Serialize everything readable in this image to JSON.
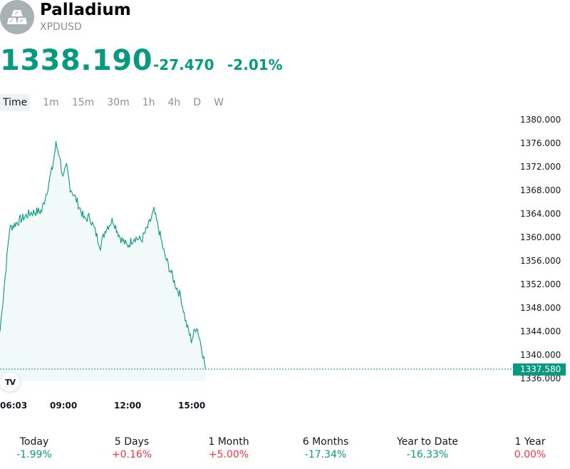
{
  "header": {
    "title": "Palladium",
    "ticker": "XPDUSD",
    "logo_icon": "metal-bars-icon"
  },
  "quote": {
    "price": "1338.190",
    "change": "-27.470",
    "change_pct": "-2.01%",
    "color": "#089981"
  },
  "tabs": [
    "Time",
    "1m",
    "15m",
    "30m",
    "1h",
    "4h",
    "D",
    "W"
  ],
  "active_tab": "Time",
  "chart": {
    "badge_text": "TV",
    "badge_icon": "tradingview-logo-icon",
    "line_color": "#089981",
    "last_value_label": "1337.580"
  },
  "chart_data": {
    "type": "area",
    "y_ticks": [
      "1380.000",
      "1376.000",
      "1372.000",
      "1368.000",
      "1364.000",
      "1360.000",
      "1356.000",
      "1352.000",
      "1348.000",
      "1344.000",
      "1340.000",
      "1336.000"
    ],
    "x_ticks": [
      "06:03",
      "09:00",
      "12:00",
      "15:00"
    ],
    "ylim": [
      1335.5,
      1380.0
    ],
    "last_value": 1337.58,
    "series": [
      {
        "x": [
          "06:03",
          "06:30",
          "07:00",
          "07:30",
          "08:00",
          "08:15",
          "08:30",
          "08:40",
          "08:50",
          "09:00",
          "09:10",
          "09:20",
          "09:40",
          "10:00",
          "10:15",
          "10:30",
          "10:45",
          "11:00",
          "11:20",
          "11:40",
          "12:00",
          "12:20",
          "12:40",
          "13:00",
          "13:15",
          "13:30",
          "13:45",
          "14:00",
          "14:15",
          "14:30",
          "14:45",
          "15:00",
          "15:15",
          "15:30",
          "15:40"
        ],
        "values": [
          1344.0,
          1361.5,
          1363.0,
          1364.2,
          1364.5,
          1368.0,
          1371.8,
          1375.8,
          1374.0,
          1370.0,
          1372.0,
          1368.5,
          1366.0,
          1363.0,
          1363.5,
          1361.0,
          1358.5,
          1361.5,
          1363.0,
          1360.0,
          1358.5,
          1360.0,
          1359.5,
          1362.0,
          1364.5,
          1361.0,
          1357.0,
          1354.5,
          1352.0,
          1350.0,
          1345.5,
          1342.5,
          1345.0,
          1341.0,
          1337.6
        ]
      }
    ]
  },
  "performance": [
    {
      "label": "Today",
      "value": "-1.99%",
      "color": "#089981"
    },
    {
      "label": "5 Days",
      "value": "+0.16%",
      "color": "#f23645"
    },
    {
      "label": "1 Month",
      "value": "+5.00%",
      "color": "#f23645"
    },
    {
      "label": "6 Months",
      "value": "-17.34%",
      "color": "#089981"
    },
    {
      "label": "Year to Date",
      "value": "-16.33%",
      "color": "#089981"
    },
    {
      "label": "1 Year",
      "value": "0.00%",
      "color": "#f23645"
    }
  ]
}
